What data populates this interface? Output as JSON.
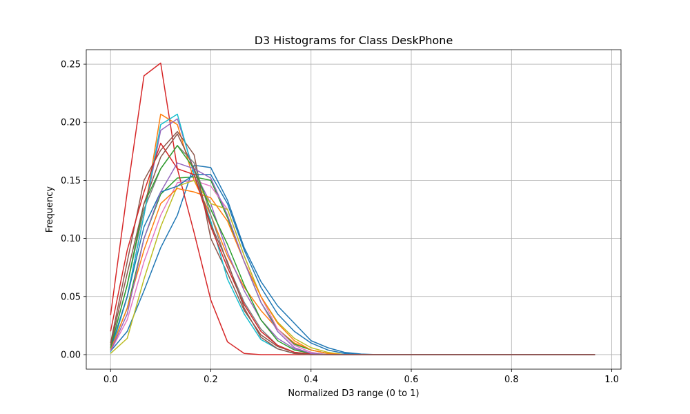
{
  "chart_data": {
    "type": "line",
    "title": "D3 Histograms for Class DeskPhone",
    "xlabel": "Normalized D3 range (0 to 1)",
    "ylabel": "Frequency",
    "xlim": [
      -0.0485,
      1.0185
    ],
    "ylim": [
      -0.0125,
      0.2625
    ],
    "xticks": [
      0.0,
      0.2,
      0.4,
      0.6,
      0.8,
      1.0
    ],
    "xtick_labels": [
      "0.0",
      "0.2",
      "0.4",
      "0.6",
      "0.8",
      "1.0"
    ],
    "yticks": [
      0.0,
      0.05,
      0.1,
      0.15,
      0.2,
      0.25
    ],
    "ytick_labels": [
      "0.00",
      "0.05",
      "0.10",
      "0.15",
      "0.20",
      "0.25"
    ],
    "grid": true,
    "colors": [
      "#1f77b4",
      "#ff7f0e",
      "#2ca02c",
      "#d62728",
      "#9467bd",
      "#8c564b",
      "#e377c2",
      "#7f7f7f",
      "#bcbd22",
      "#17becf"
    ],
    "x": [
      0.0,
      0.0333,
      0.0667,
      0.1,
      0.1333,
      0.1667,
      0.2,
      0.2333,
      0.2667,
      0.3,
      0.3333,
      0.3667,
      0.4,
      0.4333,
      0.4667,
      0.5,
      0.5333,
      0.5667,
      0.6,
      0.6333,
      0.6667,
      0.7,
      0.7333,
      0.7667,
      0.8,
      0.8333,
      0.8667,
      0.9,
      0.9333,
      0.9667
    ],
    "series": [
      {
        "color": "#1f77b4",
        "values": [
          0.003,
          0.02,
          0.055,
          0.092,
          0.12,
          0.163,
          0.161,
          0.133,
          0.092,
          0.063,
          0.042,
          0.027,
          0.012,
          0.006,
          0.002,
          0.0005,
          0,
          0,
          0,
          0,
          0,
          0,
          0,
          0,
          0,
          0,
          0,
          0,
          0,
          0
        ]
      },
      {
        "color": "#ff7f0e",
        "values": [
          0.005,
          0.05,
          0.12,
          0.207,
          0.198,
          0.15,
          0.12,
          0.085,
          0.058,
          0.038,
          0.022,
          0.01,
          0.004,
          0.001,
          0,
          0,
          0,
          0,
          0,
          0,
          0,
          0,
          0,
          0,
          0,
          0,
          0,
          0,
          0,
          0
        ]
      },
      {
        "color": "#2ca02c",
        "values": [
          0.004,
          0.04,
          0.1,
          0.138,
          0.152,
          0.153,
          0.15,
          0.118,
          0.08,
          0.045,
          0.022,
          0.009,
          0.004,
          0.001,
          0,
          0,
          0,
          0,
          0,
          0,
          0,
          0,
          0,
          0,
          0,
          0,
          0,
          0,
          0,
          0
        ]
      },
      {
        "color": "#d62728",
        "values": [
          0.034,
          0.14,
          0.24,
          0.251,
          0.16,
          0.105,
          0.047,
          0.011,
          0.001,
          0,
          0,
          0,
          0,
          0,
          0,
          0,
          0,
          0,
          0,
          0,
          0,
          0,
          0,
          0,
          0,
          0,
          0,
          0,
          0,
          0
        ]
      },
      {
        "color": "#9467bd",
        "values": [
          0.004,
          0.05,
          0.12,
          0.193,
          0.203,
          0.158,
          0.13,
          0.088,
          0.055,
          0.03,
          0.014,
          0.005,
          0.001,
          0,
          0,
          0,
          0,
          0,
          0,
          0,
          0,
          0,
          0,
          0,
          0,
          0,
          0,
          0,
          0,
          0
        ]
      },
      {
        "color": "#8c564b",
        "values": [
          0.01,
          0.08,
          0.15,
          0.176,
          0.192,
          0.172,
          0.1,
          0.07,
          0.038,
          0.017,
          0.007,
          0.002,
          0.0005,
          0,
          0,
          0,
          0,
          0,
          0,
          0,
          0,
          0,
          0,
          0,
          0,
          0,
          0,
          0,
          0,
          0
        ]
      },
      {
        "color": "#e377c2",
        "values": [
          0.003,
          0.03,
          0.08,
          0.12,
          0.148,
          0.15,
          0.145,
          0.125,
          0.085,
          0.05,
          0.022,
          0.008,
          0.002,
          0,
          0,
          0,
          0,
          0,
          0,
          0,
          0,
          0,
          0,
          0,
          0,
          0,
          0,
          0,
          0,
          0
        ]
      },
      {
        "color": "#7f7f7f",
        "values": [
          0.006,
          0.06,
          0.125,
          0.16,
          0.18,
          0.165,
          0.12,
          0.078,
          0.045,
          0.022,
          0.008,
          0.002,
          0.0005,
          0,
          0,
          0,
          0,
          0,
          0,
          0,
          0,
          0,
          0,
          0,
          0,
          0,
          0,
          0,
          0,
          0
        ]
      },
      {
        "color": "#bcbd22",
        "values": [
          0.001,
          0.014,
          0.065,
          0.11,
          0.145,
          0.15,
          0.13,
          0.125,
          0.085,
          0.05,
          0.028,
          0.014,
          0.006,
          0.002,
          0,
          0,
          0,
          0,
          0,
          0,
          0,
          0,
          0,
          0,
          0,
          0,
          0,
          0,
          0,
          0
        ]
      },
      {
        "color": "#17becf",
        "values": [
          0.002,
          0.05,
          0.12,
          0.198,
          0.207,
          0.155,
          0.115,
          0.065,
          0.035,
          0.013,
          0.005,
          0.001,
          0,
          0,
          0,
          0,
          0,
          0,
          0,
          0,
          0,
          0,
          0,
          0,
          0,
          0,
          0,
          0,
          0,
          0
        ]
      },
      {
        "color": "#1f77b4",
        "values": [
          0.005,
          0.05,
          0.11,
          0.14,
          0.145,
          0.155,
          0.155,
          0.13,
          0.09,
          0.058,
          0.035,
          0.02,
          0.01,
          0.004,
          0.001,
          0,
          0,
          0,
          0,
          0,
          0,
          0,
          0,
          0,
          0,
          0,
          0,
          0,
          0,
          0
        ]
      },
      {
        "color": "#ff7f0e",
        "values": [
          0.004,
          0.04,
          0.09,
          0.13,
          0.143,
          0.14,
          0.135,
          0.115,
          0.08,
          0.05,
          0.027,
          0.012,
          0.004,
          0.001,
          0,
          0,
          0,
          0,
          0,
          0,
          0,
          0,
          0,
          0,
          0,
          0,
          0,
          0,
          0,
          0
        ]
      },
      {
        "color": "#2ca02c",
        "values": [
          0.006,
          0.06,
          0.13,
          0.16,
          0.18,
          0.16,
          0.125,
          0.095,
          0.06,
          0.03,
          0.012,
          0.004,
          0.001,
          0,
          0,
          0,
          0,
          0,
          0,
          0,
          0,
          0,
          0,
          0,
          0,
          0,
          0,
          0,
          0,
          0
        ]
      },
      {
        "color": "#d62728",
        "values": [
          0.02,
          0.09,
          0.14,
          0.182,
          0.16,
          0.155,
          0.11,
          0.075,
          0.043,
          0.02,
          0.008,
          0.002,
          0.0005,
          0,
          0,
          0,
          0,
          0,
          0,
          0,
          0,
          0,
          0,
          0,
          0,
          0,
          0,
          0,
          0,
          0
        ]
      },
      {
        "color": "#9467bd",
        "values": [
          0.003,
          0.035,
          0.1,
          0.14,
          0.165,
          0.16,
          0.152,
          0.12,
          0.08,
          0.045,
          0.02,
          0.006,
          0.001,
          0,
          0,
          0,
          0,
          0,
          0,
          0,
          0,
          0,
          0,
          0,
          0,
          0,
          0,
          0,
          0,
          0
        ]
      },
      {
        "color": "#8c564b",
        "values": [
          0.008,
          0.07,
          0.13,
          0.17,
          0.19,
          0.16,
          0.112,
          0.08,
          0.04,
          0.015,
          0.005,
          0.001,
          0,
          0,
          0,
          0,
          0,
          0,
          0,
          0,
          0,
          0,
          0,
          0,
          0,
          0,
          0,
          0,
          0,
          0
        ]
      }
    ]
  }
}
